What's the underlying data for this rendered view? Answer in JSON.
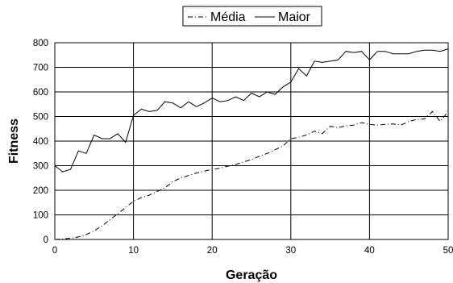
{
  "chart_data": {
    "type": "line",
    "title": "",
    "xlabel": "Geração",
    "ylabel": "Fitness",
    "xlim": [
      0,
      50
    ],
    "ylim": [
      0,
      800
    ],
    "xticks": [
      0,
      10,
      20,
      30,
      40,
      50
    ],
    "yticks": [
      0,
      100,
      200,
      300,
      400,
      500,
      600,
      700,
      800
    ],
    "grid": true,
    "legend_position": "top-center",
    "series": [
      {
        "name": "Média",
        "style": "dash-dot",
        "color": "#000000",
        "x": [
          0,
          1,
          2,
          3,
          4,
          5,
          6,
          7,
          8,
          9,
          10,
          11,
          12,
          13,
          14,
          15,
          16,
          17,
          18,
          19,
          20,
          21,
          22,
          23,
          24,
          25,
          26,
          27,
          28,
          29,
          30,
          31,
          32,
          33,
          34,
          35,
          36,
          37,
          38,
          39,
          40,
          41,
          42,
          43,
          44,
          45,
          46,
          47,
          48,
          49,
          50
        ],
        "values": [
          0,
          2,
          5,
          10,
          20,
          35,
          55,
          80,
          105,
          130,
          155,
          170,
          180,
          195,
          210,
          235,
          250,
          260,
          270,
          278,
          285,
          290,
          298,
          305,
          315,
          325,
          338,
          350,
          365,
          380,
          410,
          415,
          425,
          440,
          430,
          460,
          455,
          462,
          465,
          475,
          468,
          465,
          468,
          470,
          465,
          480,
          488,
          490,
          520,
          480,
          520
        ]
      },
      {
        "name": "Maior",
        "style": "solid",
        "color": "#000000",
        "x": [
          0,
          1,
          2,
          3,
          4,
          5,
          6,
          7,
          8,
          9,
          10,
          11,
          12,
          13,
          14,
          15,
          16,
          17,
          18,
          19,
          20,
          21,
          22,
          23,
          24,
          25,
          26,
          27,
          28,
          29,
          30,
          31,
          32,
          33,
          34,
          35,
          36,
          37,
          38,
          39,
          40,
          41,
          42,
          43,
          44,
          45,
          46,
          47,
          48,
          49,
          50
        ],
        "values": [
          300,
          275,
          285,
          360,
          350,
          425,
          410,
          410,
          430,
          395,
          505,
          530,
          520,
          525,
          560,
          555,
          535,
          560,
          540,
          555,
          575,
          560,
          565,
          580,
          565,
          595,
          580,
          600,
          590,
          620,
          640,
          695,
          665,
          725,
          720,
          725,
          730,
          765,
          760,
          765,
          730,
          765,
          765,
          755,
          755,
          755,
          765,
          770,
          770,
          765,
          775
        ]
      }
    ]
  }
}
